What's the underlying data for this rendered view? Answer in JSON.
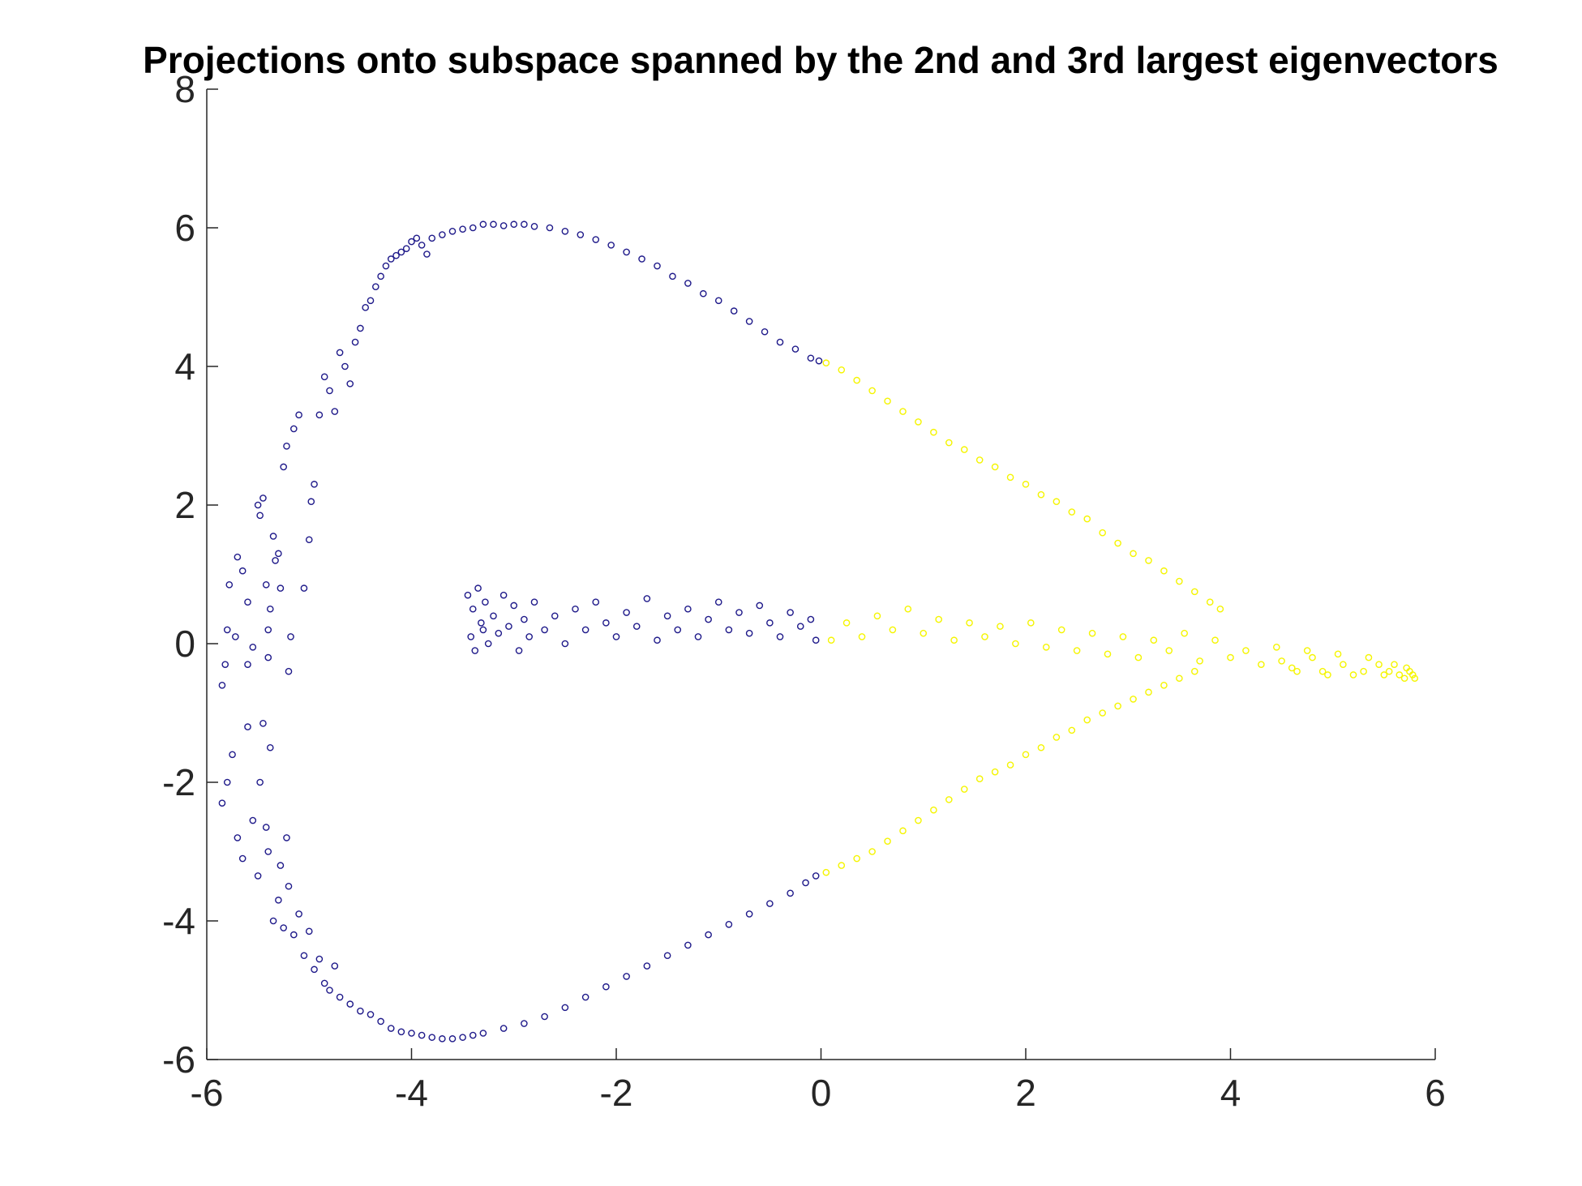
{
  "chart_data": {
    "type": "scatter",
    "title": "Projections onto subspace spanned by the 2nd and 3rd largest eigenvectors",
    "xlabel": "",
    "ylabel": "",
    "xlim": [
      -6,
      6
    ],
    "ylim": [
      -6,
      8
    ],
    "xticks": [
      "-6",
      "-4",
      "-2",
      "0",
      "2",
      "4",
      "6"
    ],
    "yticks": [
      "-6",
      "-4",
      "-2",
      "0",
      "2",
      "4",
      "6",
      "8"
    ],
    "grid": false,
    "legend": "none",
    "colors": {
      "cluster_1": "#1f1a8a",
      "cluster_2": "#f5f500"
    },
    "series": [
      {
        "color": "#1f1a8a",
        "points": [
          [
            -5.85,
            -0.6
          ],
          [
            -5.82,
            -0.3
          ],
          [
            -5.8,
            0.2
          ],
          [
            -5.78,
            0.85
          ],
          [
            -5.72,
            0.1
          ],
          [
            -5.7,
            1.25
          ],
          [
            -5.65,
            1.05
          ],
          [
            -5.6,
            0.6
          ],
          [
            -5.6,
            -0.3
          ],
          [
            -5.55,
            -0.05
          ],
          [
            -5.5,
            2.0
          ],
          [
            -5.48,
            1.85
          ],
          [
            -5.45,
            2.1
          ],
          [
            -5.42,
            0.85
          ],
          [
            -5.4,
            0.2
          ],
          [
            -5.4,
            -0.2
          ],
          [
            -5.38,
            0.5
          ],
          [
            -5.35,
            1.55
          ],
          [
            -5.33,
            1.2
          ],
          [
            -5.3,
            1.3
          ],
          [
            -5.28,
            0.8
          ],
          [
            -5.25,
            2.55
          ],
          [
            -5.22,
            2.85
          ],
          [
            -5.2,
            -0.4
          ],
          [
            -5.18,
            0.1
          ],
          [
            -5.15,
            3.1
          ],
          [
            -5.1,
            3.3
          ],
          [
            -5.05,
            0.8
          ],
          [
            -5.0,
            1.5
          ],
          [
            -4.98,
            2.05
          ],
          [
            -4.95,
            2.3
          ],
          [
            -4.9,
            3.3
          ],
          [
            -4.85,
            3.85
          ],
          [
            -4.8,
            3.65
          ],
          [
            -4.75,
            3.35
          ],
          [
            -4.7,
            4.2
          ],
          [
            -4.65,
            4.0
          ],
          [
            -4.6,
            3.75
          ],
          [
            -4.55,
            4.35
          ],
          [
            -4.5,
            4.55
          ],
          [
            -4.45,
            4.85
          ],
          [
            -4.4,
            4.95
          ],
          [
            -4.35,
            5.15
          ],
          [
            -4.3,
            5.3
          ],
          [
            -4.25,
            5.45
          ],
          [
            -4.2,
            5.55
          ],
          [
            -4.15,
            5.6
          ],
          [
            -4.1,
            5.65
          ],
          [
            -4.05,
            5.7
          ],
          [
            -4.0,
            5.8
          ],
          [
            -3.95,
            5.85
          ],
          [
            -3.9,
            5.75
          ],
          [
            -3.85,
            5.62
          ],
          [
            -3.8,
            5.85
          ],
          [
            -3.7,
            5.9
          ],
          [
            -3.6,
            5.95
          ],
          [
            -3.5,
            5.98
          ],
          [
            -3.4,
            6.0
          ],
          [
            -3.3,
            6.05
          ],
          [
            -3.2,
            6.05
          ],
          [
            -3.1,
            6.03
          ],
          [
            -3.0,
            6.05
          ],
          [
            -2.9,
            6.05
          ],
          [
            -2.8,
            6.02
          ],
          [
            -2.65,
            6.0
          ],
          [
            -2.5,
            5.95
          ],
          [
            -2.35,
            5.9
          ],
          [
            -2.2,
            5.83
          ],
          [
            -2.05,
            5.75
          ],
          [
            -1.9,
            5.65
          ],
          [
            -1.75,
            5.55
          ],
          [
            -1.6,
            5.45
          ],
          [
            -1.45,
            5.3
          ],
          [
            -1.3,
            5.2
          ],
          [
            -1.15,
            5.05
          ],
          [
            -1.0,
            4.95
          ],
          [
            -0.85,
            4.8
          ],
          [
            -0.7,
            4.65
          ],
          [
            -0.55,
            4.5
          ],
          [
            -0.4,
            4.35
          ],
          [
            -0.25,
            4.25
          ],
          [
            -0.1,
            4.12
          ],
          [
            -0.02,
            4.08
          ],
          [
            -5.85,
            -2.3
          ],
          [
            -5.8,
            -2.0
          ],
          [
            -5.75,
            -1.6
          ],
          [
            -5.7,
            -2.8
          ],
          [
            -5.65,
            -3.1
          ],
          [
            -5.6,
            -1.2
          ],
          [
            -5.55,
            -2.55
          ],
          [
            -5.5,
            -3.35
          ],
          [
            -5.48,
            -2.0
          ],
          [
            -5.45,
            -1.15
          ],
          [
            -5.42,
            -2.65
          ],
          [
            -5.4,
            -3.0
          ],
          [
            -5.38,
            -1.5
          ],
          [
            -5.35,
            -4.0
          ],
          [
            -5.3,
            -3.7
          ],
          [
            -5.28,
            -3.2
          ],
          [
            -5.25,
            -4.1
          ],
          [
            -5.22,
            -2.8
          ],
          [
            -5.2,
            -3.5
          ],
          [
            -5.15,
            -4.2
          ],
          [
            -5.1,
            -3.9
          ],
          [
            -5.05,
            -4.5
          ],
          [
            -5.0,
            -4.15
          ],
          [
            -4.95,
            -4.7
          ],
          [
            -4.9,
            -4.55
          ],
          [
            -4.85,
            -4.9
          ],
          [
            -4.8,
            -5.0
          ],
          [
            -4.75,
            -4.65
          ],
          [
            -4.7,
            -5.1
          ],
          [
            -4.6,
            -5.2
          ],
          [
            -4.5,
            -5.3
          ],
          [
            -4.4,
            -5.35
          ],
          [
            -4.3,
            -5.45
          ],
          [
            -4.2,
            -5.55
          ],
          [
            -4.1,
            -5.6
          ],
          [
            -4.0,
            -5.62
          ],
          [
            -3.9,
            -5.65
          ],
          [
            -3.8,
            -5.68
          ],
          [
            -3.7,
            -5.7
          ],
          [
            -3.6,
            -5.7
          ],
          [
            -3.5,
            -5.68
          ],
          [
            -3.4,
            -5.65
          ],
          [
            -3.3,
            -5.62
          ],
          [
            -3.1,
            -5.55
          ],
          [
            -2.9,
            -5.48
          ],
          [
            -2.7,
            -5.38
          ],
          [
            -2.5,
            -5.25
          ],
          [
            -2.3,
            -5.1
          ],
          [
            -2.1,
            -4.95
          ],
          [
            -1.9,
            -4.8
          ],
          [
            -1.7,
            -4.65
          ],
          [
            -1.5,
            -4.5
          ],
          [
            -1.3,
            -4.35
          ],
          [
            -1.1,
            -4.2
          ],
          [
            -0.9,
            -4.05
          ],
          [
            -0.7,
            -3.9
          ],
          [
            -0.5,
            -3.75
          ],
          [
            -0.3,
            -3.6
          ],
          [
            -0.15,
            -3.45
          ],
          [
            -0.05,
            -3.35
          ],
          [
            -3.45,
            0.7
          ],
          [
            -3.42,
            0.1
          ],
          [
            -3.4,
            0.5
          ],
          [
            -3.38,
            -0.1
          ],
          [
            -3.35,
            0.8
          ],
          [
            -3.32,
            0.3
          ],
          [
            -3.3,
            0.2
          ],
          [
            -3.28,
            0.6
          ],
          [
            -3.25,
            0.0
          ],
          [
            -3.2,
            0.4
          ],
          [
            -3.15,
            0.15
          ],
          [
            -3.1,
            0.7
          ],
          [
            -3.05,
            0.25
          ],
          [
            -3.0,
            0.55
          ],
          [
            -2.95,
            -0.1
          ],
          [
            -2.9,
            0.35
          ],
          [
            -2.85,
            0.1
          ],
          [
            -2.8,
            0.6
          ],
          [
            -2.7,
            0.2
          ],
          [
            -2.6,
            0.4
          ],
          [
            -2.5,
            0.0
          ],
          [
            -2.4,
            0.5
          ],
          [
            -2.3,
            0.2
          ],
          [
            -2.2,
            0.6
          ],
          [
            -2.1,
            0.3
          ],
          [
            -2.0,
            0.1
          ],
          [
            -1.9,
            0.45
          ],
          [
            -1.8,
            0.25
          ],
          [
            -1.7,
            0.65
          ],
          [
            -1.6,
            0.05
          ],
          [
            -1.5,
            0.4
          ],
          [
            -1.4,
            0.2
          ],
          [
            -1.3,
            0.5
          ],
          [
            -1.2,
            0.1
          ],
          [
            -1.1,
            0.35
          ],
          [
            -1.0,
            0.6
          ],
          [
            -0.9,
            0.2
          ],
          [
            -0.8,
            0.45
          ],
          [
            -0.7,
            0.15
          ],
          [
            -0.6,
            0.55
          ],
          [
            -0.5,
            0.3
          ],
          [
            -0.4,
            0.1
          ],
          [
            -0.3,
            0.45
          ],
          [
            -0.2,
            0.25
          ],
          [
            -0.1,
            0.35
          ],
          [
            -0.05,
            0.05
          ]
        ]
      },
      {
        "color": "#f5f500",
        "points": [
          [
            0.05,
            4.05
          ],
          [
            0.2,
            3.95
          ],
          [
            0.35,
            3.8
          ],
          [
            0.5,
            3.65
          ],
          [
            0.65,
            3.5
          ],
          [
            0.8,
            3.35
          ],
          [
            0.95,
            3.2
          ],
          [
            1.1,
            3.05
          ],
          [
            1.25,
            2.9
          ],
          [
            1.4,
            2.8
          ],
          [
            1.55,
            2.65
          ],
          [
            1.7,
            2.55
          ],
          [
            1.85,
            2.4
          ],
          [
            2.0,
            2.3
          ],
          [
            2.15,
            2.15
          ],
          [
            2.3,
            2.05
          ],
          [
            2.45,
            1.9
          ],
          [
            2.6,
            1.8
          ],
          [
            2.75,
            1.6
          ],
          [
            2.9,
            1.45
          ],
          [
            3.05,
            1.3
          ],
          [
            3.2,
            1.2
          ],
          [
            3.35,
            1.05
          ],
          [
            3.5,
            0.9
          ],
          [
            3.65,
            0.75
          ],
          [
            3.8,
            0.6
          ],
          [
            3.9,
            0.5
          ],
          [
            0.05,
            -3.3
          ],
          [
            0.2,
            -3.2
          ],
          [
            0.35,
            -3.1
          ],
          [
            0.5,
            -3.0
          ],
          [
            0.65,
            -2.85
          ],
          [
            0.8,
            -2.7
          ],
          [
            0.95,
            -2.55
          ],
          [
            1.1,
            -2.4
          ],
          [
            1.25,
            -2.25
          ],
          [
            1.4,
            -2.1
          ],
          [
            1.55,
            -1.95
          ],
          [
            1.7,
            -1.85
          ],
          [
            1.85,
            -1.75
          ],
          [
            2.0,
            -1.6
          ],
          [
            2.15,
            -1.5
          ],
          [
            2.3,
            -1.35
          ],
          [
            2.45,
            -1.25
          ],
          [
            2.6,
            -1.1
          ],
          [
            2.75,
            -1.0
          ],
          [
            2.9,
            -0.9
          ],
          [
            3.05,
            -0.8
          ],
          [
            3.2,
            -0.7
          ],
          [
            3.35,
            -0.6
          ],
          [
            3.5,
            -0.5
          ],
          [
            3.65,
            -0.4
          ],
          [
            0.1,
            0.05
          ],
          [
            0.25,
            0.3
          ],
          [
            0.4,
            0.1
          ],
          [
            0.55,
            0.4
          ],
          [
            0.7,
            0.2
          ],
          [
            0.85,
            0.5
          ],
          [
            1.0,
            0.15
          ],
          [
            1.15,
            0.35
          ],
          [
            1.3,
            0.05
          ],
          [
            1.45,
            0.3
          ],
          [
            1.6,
            0.1
          ],
          [
            1.75,
            0.25
          ],
          [
            1.9,
            0.0
          ],
          [
            2.05,
            0.3
          ],
          [
            2.2,
            -0.05
          ],
          [
            2.35,
            0.2
          ],
          [
            2.5,
            -0.1
          ],
          [
            2.65,
            0.15
          ],
          [
            2.8,
            -0.15
          ],
          [
            2.95,
            0.1
          ],
          [
            3.1,
            -0.2
          ],
          [
            3.25,
            0.05
          ],
          [
            3.4,
            -0.1
          ],
          [
            3.55,
            0.15
          ],
          [
            3.7,
            -0.25
          ],
          [
            3.85,
            0.05
          ],
          [
            4.0,
            -0.2
          ],
          [
            4.15,
            -0.1
          ],
          [
            4.3,
            -0.3
          ],
          [
            4.45,
            -0.05
          ],
          [
            4.6,
            -0.35
          ],
          [
            4.75,
            -0.1
          ],
          [
            4.9,
            -0.4
          ],
          [
            5.05,
            -0.15
          ],
          [
            5.2,
            -0.45
          ],
          [
            5.35,
            -0.2
          ],
          [
            5.5,
            -0.45
          ],
          [
            5.6,
            -0.3
          ],
          [
            5.7,
            -0.5
          ],
          [
            5.75,
            -0.4
          ],
          [
            5.78,
            -0.45
          ],
          [
            5.8,
            -0.5
          ],
          [
            5.72,
            -0.35
          ],
          [
            5.65,
            -0.45
          ],
          [
            5.55,
            -0.4
          ],
          [
            5.45,
            -0.3
          ],
          [
            5.3,
            -0.4
          ],
          [
            5.1,
            -0.3
          ],
          [
            4.95,
            -0.45
          ],
          [
            4.8,
            -0.2
          ],
          [
            4.65,
            -0.4
          ],
          [
            4.5,
            -0.25
          ]
        ]
      }
    ]
  }
}
